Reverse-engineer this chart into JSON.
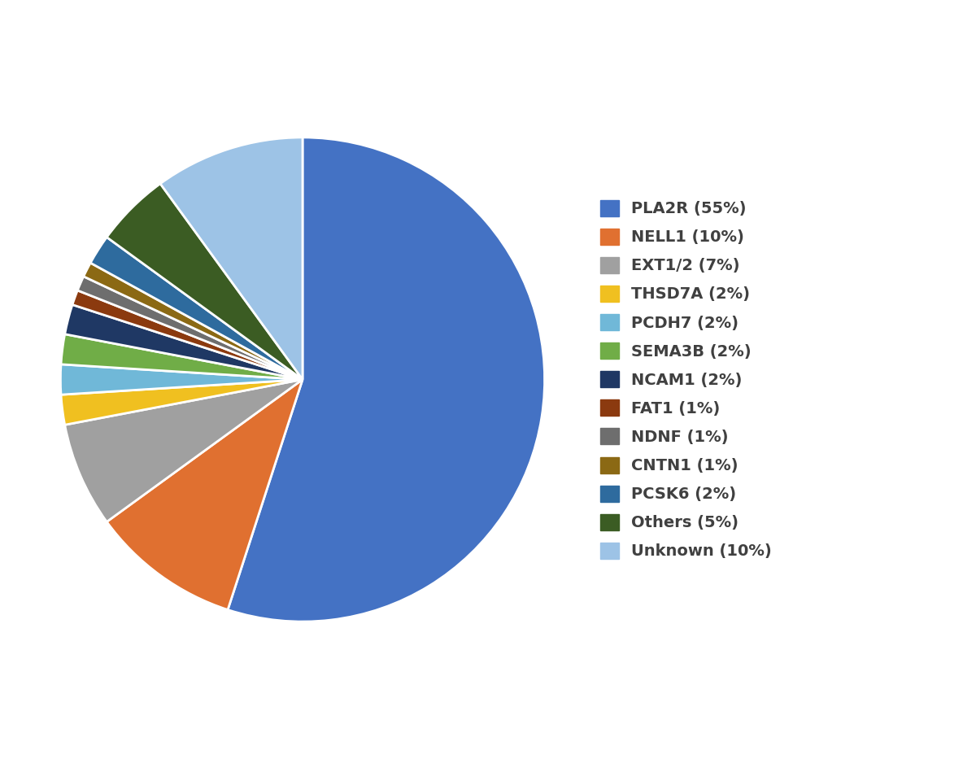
{
  "labels": [
    "PLA2R (55%)",
    "NELL1 (10%)",
    "EXT1/2 (7%)",
    "THSD7A (2%)",
    "PCDH7 (2%)",
    "SEMA3B (2%)",
    "NCAM1 (2%)",
    "FAT1 (1%)",
    "NDNF (1%)",
    "CNTN1 (1%)",
    "PCSK6 (2%)",
    "Others (5%)",
    "Unknown (10%)"
  ],
  "values": [
    55,
    10,
    7,
    2,
    2,
    2,
    2,
    1,
    1,
    1,
    2,
    5,
    10
  ],
  "colors": [
    "#4472C4",
    "#E07030",
    "#A0A0A0",
    "#F0C020",
    "#70B8D8",
    "#70AD47",
    "#1F3864",
    "#8B3A0F",
    "#6E6E6E",
    "#8B6914",
    "#2E6B9E",
    "#3B5C23",
    "#9DC3E6"
  ],
  "background_color": "#FFFFFF",
  "legend_fontsize": 14,
  "figsize": [
    12.0,
    9.33
  ]
}
